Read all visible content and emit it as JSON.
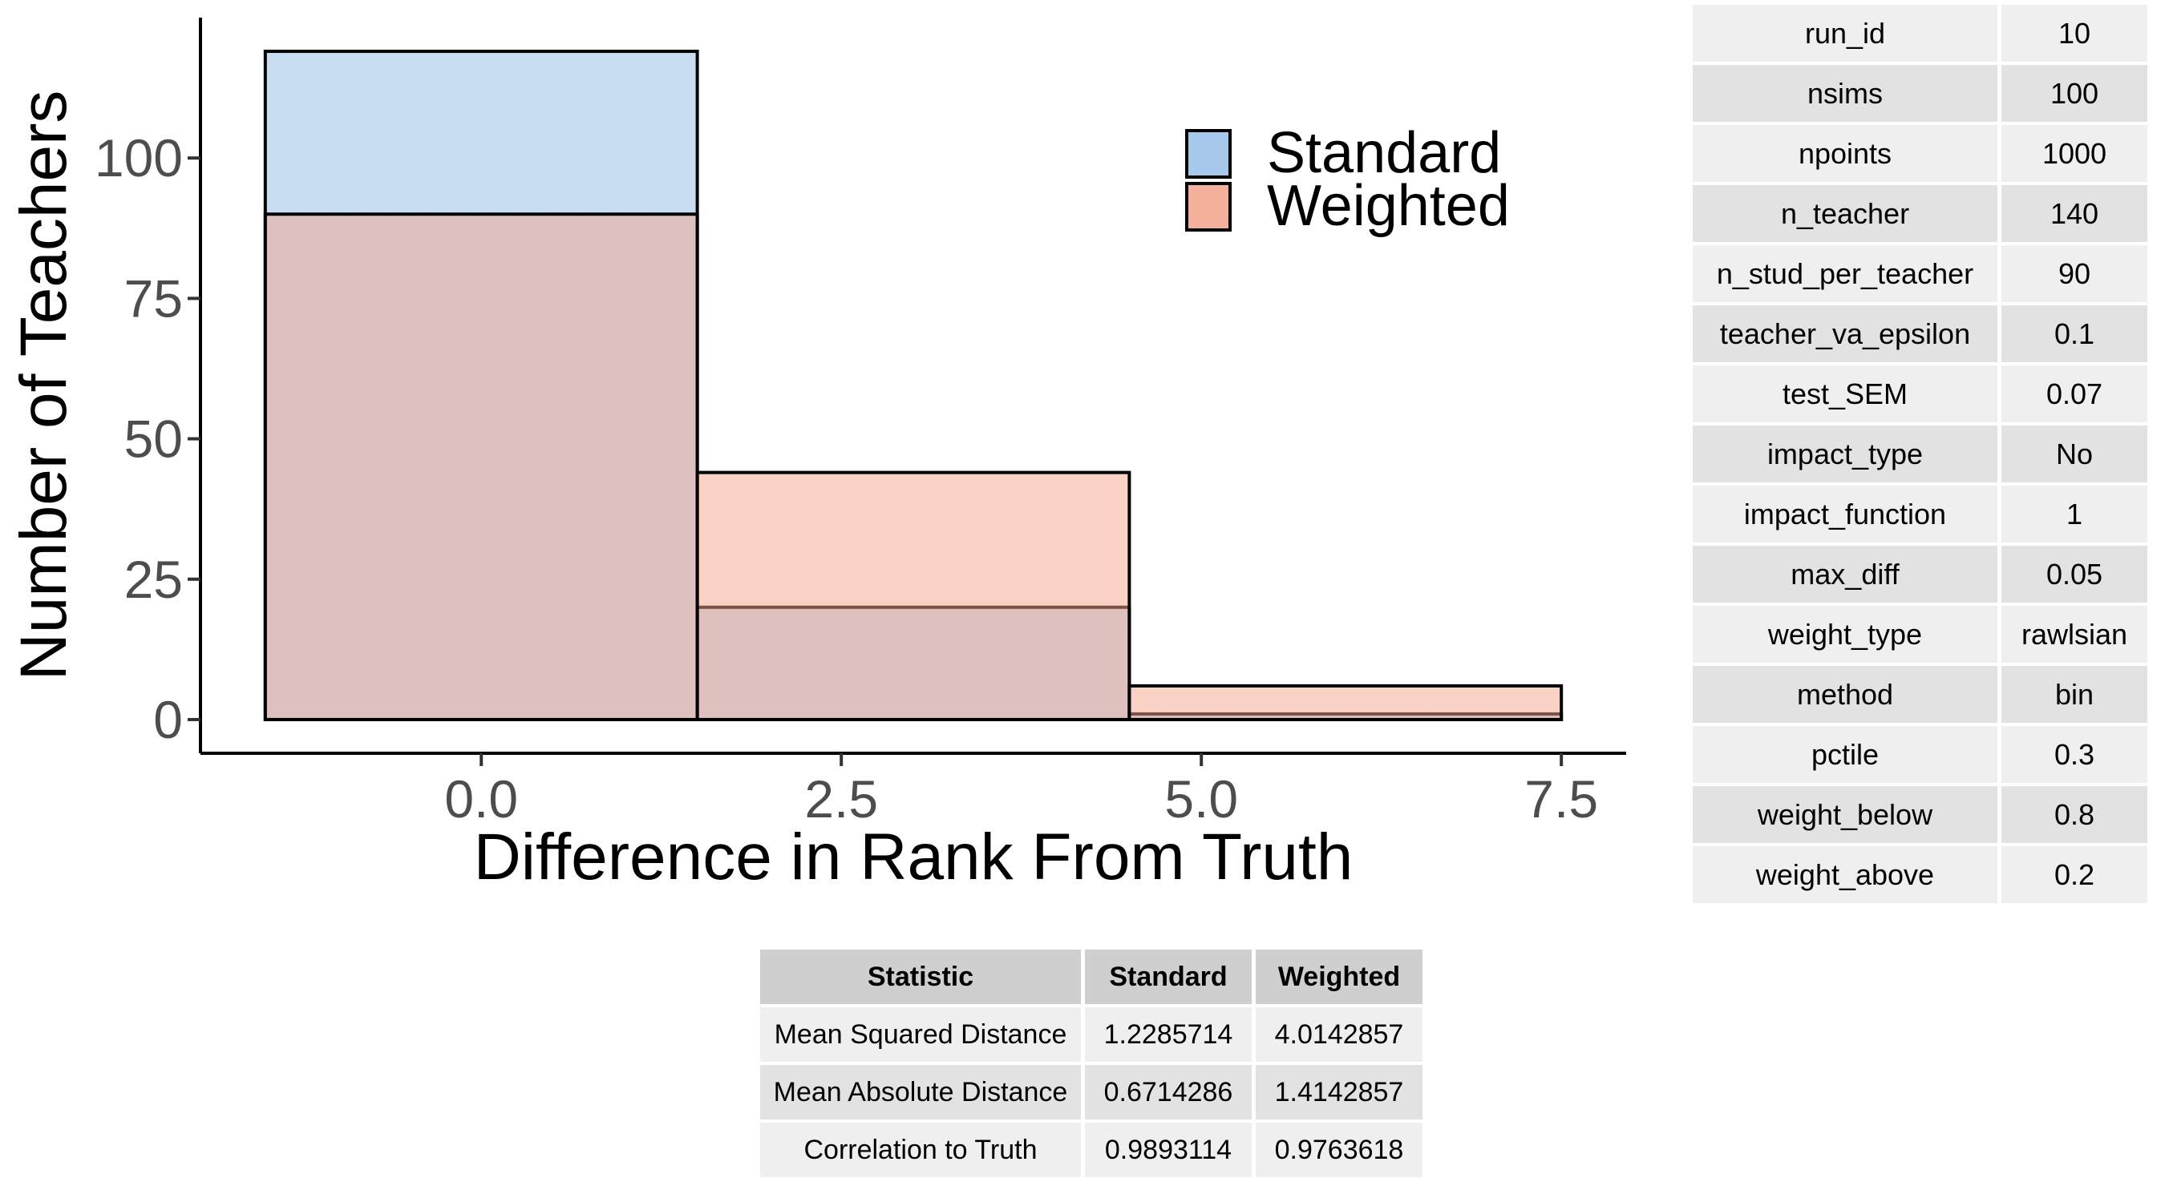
{
  "chart_data": {
    "type": "bar",
    "title": "",
    "xlabel": "Difference in Rank From Truth",
    "ylabel": "Number of Teachers",
    "bin_width": 3,
    "bins": [
      {
        "x_start": -1.5,
        "x_end": 1.5
      },
      {
        "x_start": 1.5,
        "x_end": 4.5
      },
      {
        "x_start": 4.5,
        "x_end": 7.5
      }
    ],
    "series": [
      {
        "name": "Standard",
        "color": "#a6c8ea",
        "values": [
          119,
          20,
          1
        ]
      },
      {
        "name": "Weighted",
        "color": "#f4a58a",
        "values": [
          90,
          44,
          6
        ]
      }
    ],
    "xlim": [
      -1.95,
      7.95
    ],
    "ylim": [
      -6,
      125
    ],
    "x_ticks": [
      0.0,
      2.5,
      5.0,
      7.5
    ],
    "x_tick_labels": [
      "0.0",
      "2.5",
      "5.0",
      "7.5"
    ],
    "y_ticks": [
      0,
      25,
      50,
      75,
      100
    ],
    "y_tick_labels": [
      "0",
      "25",
      "50",
      "75",
      "100"
    ],
    "legend_position": "top-right",
    "grid": false
  },
  "parameters": {
    "rows": [
      {
        "name": "run_id",
        "value": "10"
      },
      {
        "name": "nsims",
        "value": "100"
      },
      {
        "name": "npoints",
        "value": "1000"
      },
      {
        "name": "n_teacher",
        "value": "140"
      },
      {
        "name": "n_stud_per_teacher",
        "value": "90"
      },
      {
        "name": "teacher_va_epsilon",
        "value": "0.1"
      },
      {
        "name": "test_SEM",
        "value": "0.07"
      },
      {
        "name": "impact_type",
        "value": "No"
      },
      {
        "name": "impact_function",
        "value": "1"
      },
      {
        "name": "max_diff",
        "value": "0.05"
      },
      {
        "name": "weight_type",
        "value": "rawlsian"
      },
      {
        "name": "method",
        "value": "bin"
      },
      {
        "name": "pctile",
        "value": "0.3"
      },
      {
        "name": "weight_below",
        "value": "0.8"
      },
      {
        "name": "weight_above",
        "value": "0.2"
      }
    ]
  },
  "stats": {
    "headers": [
      "Statistic",
      "Standard",
      "Weighted"
    ],
    "rows": [
      [
        "Mean Squared Distance",
        "1.2285714",
        "4.0142857"
      ],
      [
        "Mean Absolute Distance",
        "0.6714286",
        "1.4142857"
      ],
      [
        "Correlation to Truth",
        "0.9893114",
        "0.9763618"
      ]
    ]
  }
}
